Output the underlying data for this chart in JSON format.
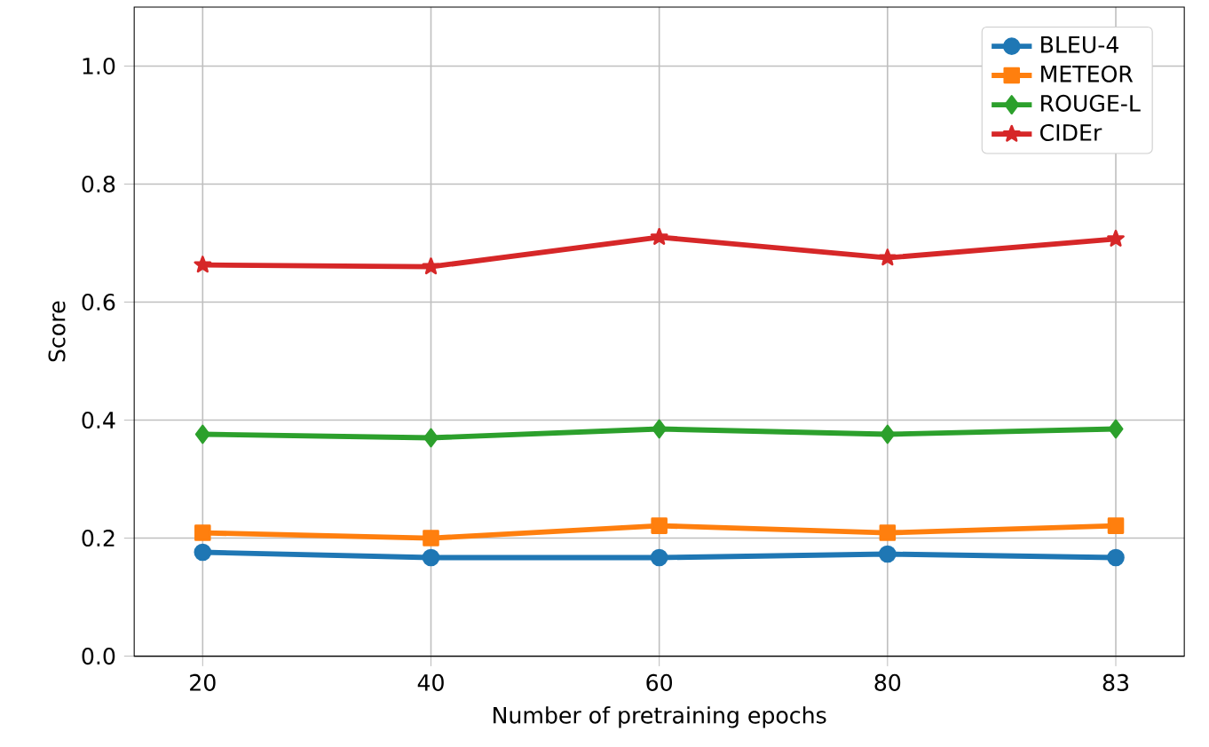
{
  "chart_data": {
    "type": "line",
    "xlabel": "Number of pretraining epochs",
    "ylabel": "Score",
    "categories": [
      "20",
      "40",
      "60",
      "80",
      "83"
    ],
    "series": [
      {
        "name": "BLEU-4",
        "color": "#1f77b4",
        "marker": "circle",
        "values": [
          0.176,
          0.167,
          0.167,
          0.173,
          0.167
        ]
      },
      {
        "name": "METEOR",
        "color": "#ff7f0e",
        "marker": "square",
        "values": [
          0.209,
          0.2,
          0.221,
          0.209,
          0.221
        ]
      },
      {
        "name": "ROUGE-L",
        "color": "#2ca02c",
        "marker": "diamond",
        "values": [
          0.376,
          0.37,
          0.385,
          0.376,
          0.385
        ]
      },
      {
        "name": "CIDEr",
        "color": "#d62728",
        "marker": "star",
        "values": [
          0.663,
          0.66,
          0.71,
          0.675,
          0.707
        ]
      }
    ],
    "ylim": [
      0,
      1.1
    ],
    "yticks": [
      {
        "value": 0,
        "label": "0.0"
      },
      {
        "value": 0.2,
        "label": "0.2"
      },
      {
        "value": 0.4,
        "label": "0.4"
      },
      {
        "value": 0.6,
        "label": "0.6"
      },
      {
        "value": 0.8,
        "label": "0.8"
      },
      {
        "value": 1.0,
        "label": "1.0"
      }
    ],
    "grid": true,
    "legend": "top right",
    "line_style": "solid"
  }
}
